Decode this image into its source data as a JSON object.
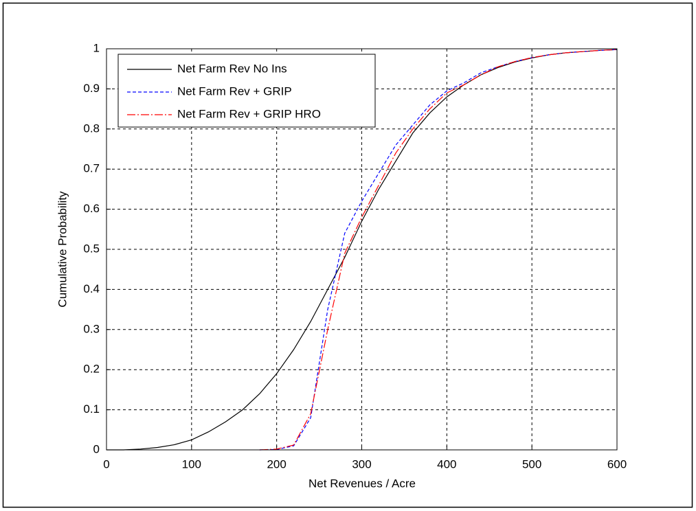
{
  "chart_data": {
    "type": "line",
    "xlabel": "Net Revenues / Acre",
    "ylabel": "Cumulative Probability",
    "x": [
      0,
      20,
      40,
      60,
      80,
      100,
      120,
      140,
      160,
      180,
      200,
      220,
      240,
      260,
      280,
      300,
      320,
      340,
      360,
      380,
      400,
      420,
      440,
      460,
      480,
      500,
      520,
      540,
      560,
      580,
      600
    ],
    "series": [
      {
        "name": "Net Farm Rev No Ins",
        "color": "#000000",
        "style": "solid",
        "values": [
          0,
          0,
          0.002,
          0.006,
          0.013,
          0.025,
          0.045,
          0.07,
          0.1,
          0.14,
          0.19,
          0.25,
          0.32,
          0.4,
          0.48,
          0.57,
          0.65,
          0.72,
          0.79,
          0.84,
          0.88,
          0.91,
          0.935,
          0.953,
          0.967,
          0.977,
          0.985,
          0.99,
          0.993,
          0.996,
          0.998
        ]
      },
      {
        "name": "Net Farm Rev + GRIP",
        "color": "#0000ff",
        "style": "dashed",
        "values": [
          null,
          null,
          null,
          null,
          null,
          null,
          null,
          null,
          null,
          0,
          0.001,
          0.01,
          0.08,
          0.35,
          0.54,
          0.62,
          0.69,
          0.76,
          0.81,
          0.86,
          0.895,
          0.915,
          0.94,
          0.955,
          0.968,
          0.978,
          0.985,
          0.99,
          0.993,
          0.996,
          0.998
        ]
      },
      {
        "name": "Net Farm Rev + GRIP HRO",
        "color": "#ff0000",
        "style": "dashdot",
        "values": [
          null,
          null,
          null,
          null,
          null,
          null,
          null,
          null,
          null,
          0,
          0.002,
          0.012,
          0.09,
          0.3,
          0.49,
          0.58,
          0.66,
          0.74,
          0.8,
          0.85,
          0.89,
          0.91,
          0.935,
          0.955,
          0.968,
          0.978,
          0.985,
          0.99,
          0.993,
          0.996,
          0.998
        ]
      }
    ],
    "xlim": [
      0,
      600
    ],
    "xticks": [
      0,
      100,
      200,
      300,
      400,
      500,
      600
    ],
    "ylim": [
      0,
      1
    ],
    "yticks": [
      0,
      0.1,
      0.2,
      0.3,
      0.4,
      0.5,
      0.6,
      0.7,
      0.8,
      0.9,
      1
    ],
    "grid": true,
    "legend": "upper-left"
  }
}
